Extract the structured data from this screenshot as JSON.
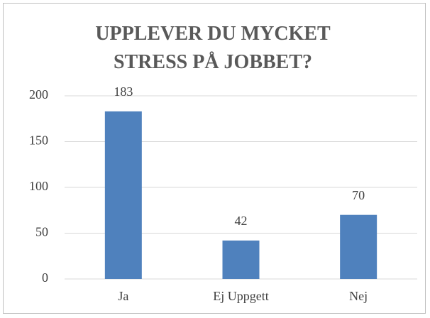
{
  "chart_data": {
    "type": "bar",
    "title": "UPPLEVER DU MYCKET STRESS PÅ JOBBET?",
    "categories": [
      "Ja",
      "Ej Uppgett",
      "Nej"
    ],
    "values": [
      183,
      42,
      70
    ],
    "color": "#4f81bd",
    "ylim": [
      0,
      200
    ],
    "yticks": [
      0,
      50,
      100,
      150,
      200
    ],
    "grid": true,
    "value_labels_shown": true
  }
}
